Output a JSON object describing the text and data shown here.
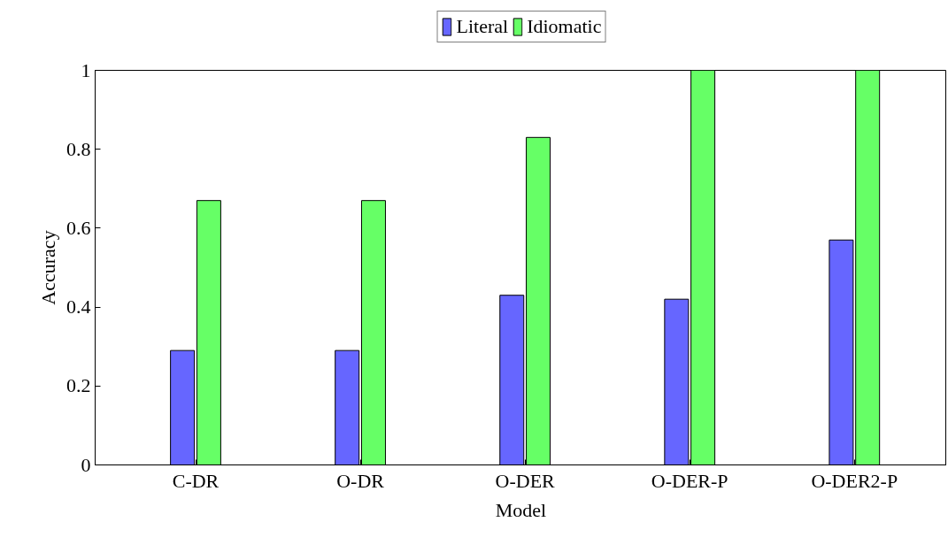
{
  "chart_data": {
    "type": "bar",
    "xlabel": "Model",
    "ylabel": "Accuracy",
    "categories": [
      "C-DR",
      "O-DR",
      "O-DER",
      "O-DER-P",
      "O-DER2-P"
    ],
    "series": [
      {
        "name": "Literal",
        "color": "#6666ff",
        "values": [
          0.29,
          0.29,
          0.43,
          0.42,
          0.57
        ]
      },
      {
        "name": "Idiomatic",
        "color": "#66ff66",
        "values": [
          0.67,
          0.67,
          0.83,
          1.0,
          1.0
        ]
      }
    ],
    "ylim": [
      0,
      1
    ],
    "yticks": [
      0,
      0.2,
      0.4,
      0.6,
      0.8,
      1
    ],
    "grid": false,
    "legend": "top"
  }
}
